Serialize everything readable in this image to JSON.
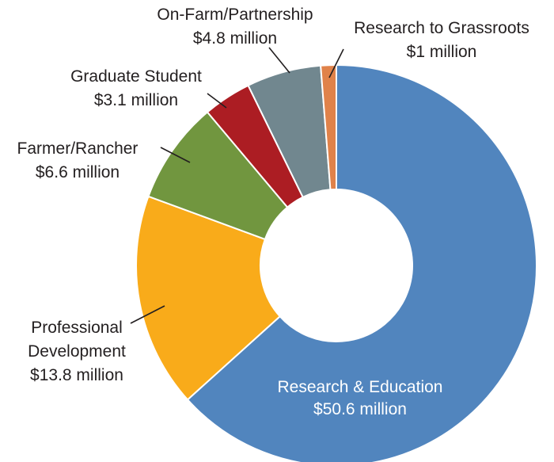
{
  "chart_data": {
    "type": "pie",
    "variant": "donut",
    "title": "",
    "slices": [
      {
        "label": "Research & Education",
        "value_text": "$50.6 million",
        "value": 50.6,
        "color": "#5185be"
      },
      {
        "label": "Professional Development",
        "value_text": "$13.8 million",
        "value": 13.8,
        "color": "#f9ab1a"
      },
      {
        "label": "Farmer/Rancher",
        "value_text": "$6.6 million",
        "value": 6.6,
        "color": "#71963f"
      },
      {
        "label": "Graduate Student",
        "value_text": "$3.1 million",
        "value": 3.1,
        "color": "#ac1d23"
      },
      {
        "label": "On-Farm/Partnership",
        "value_text": "$4.8 million",
        "value": 4.8,
        "color": "#71878f"
      },
      {
        "label": "Research to Grassroots",
        "value_text": "$1 million",
        "value": 1,
        "color": "#e0824a"
      }
    ],
    "label_lines": {
      "professional_development": [
        "Professional",
        "Development"
      ]
    }
  }
}
